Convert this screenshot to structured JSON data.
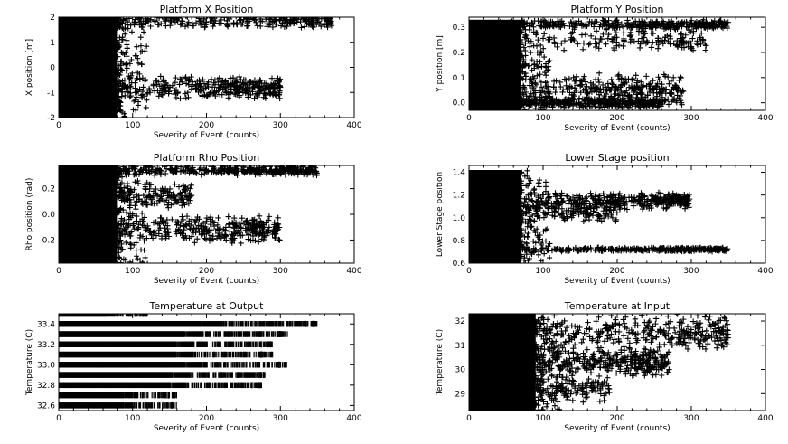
{
  "figure": {
    "background": "#ffffff",
    "ink_color": "#000000"
  },
  "chart_data": [
    {
      "type": "scatter",
      "title": "Platform X Position",
      "xlabel": "Severity of Event (counts)",
      "ylabel": "X position [m]",
      "xlim": [
        0,
        400
      ],
      "ylim": [
        -2.0,
        2.0
      ],
      "x_ticks": [
        0,
        100,
        200,
        300,
        400
      ],
      "y_ticks": [
        -2,
        -1,
        0,
        1,
        2
      ],
      "marker": "+",
      "grid": false,
      "legend": "none",
      "bands": [
        {
          "y_center": 1.9,
          "y_spread": 0.35,
          "x_max": 370,
          "density": "dense"
        },
        {
          "y_center": -0.8,
          "y_spread": 0.5,
          "x_max": 300,
          "density": "dense"
        },
        {
          "y_center": 0.0,
          "y_spread": 2.0,
          "x_max": 80,
          "density": "solid"
        }
      ]
    },
    {
      "type": "scatter",
      "title": "Platform Y Position",
      "xlabel": "Severity of Event (counts)",
      "ylabel": "Y position [m]",
      "xlim": [
        0,
        400
      ],
      "ylim": [
        -0.03,
        0.34
      ],
      "x_ticks": [
        0,
        100,
        200,
        300,
        400
      ],
      "y_ticks": [
        0.0,
        0.1,
        0.2,
        0.3
      ],
      "marker": "+",
      "grid": false,
      "legend": "none",
      "bands": [
        {
          "y_center": 0.31,
          "y_spread": 0.02,
          "x_max": 350,
          "density": "dense"
        },
        {
          "y_center": 0.25,
          "y_spread": 0.05,
          "x_max": 320,
          "density": "medium"
        },
        {
          "y_center": 0.05,
          "y_spread": 0.07,
          "x_max": 290,
          "density": "dense"
        },
        {
          "y_center": 0.0,
          "y_spread": 0.02,
          "x_max": 260,
          "density": "dense"
        },
        {
          "y_center": 0.15,
          "y_spread": 0.18,
          "x_max": 70,
          "density": "solid"
        }
      ]
    },
    {
      "type": "scatter",
      "title": "Platform Rho Position",
      "xlabel": "Severity of Event (counts)",
      "ylabel": "Rho position (rad)",
      "xlim": [
        0,
        400
      ],
      "ylim": [
        -0.38,
        0.38
      ],
      "x_ticks": [
        0,
        100,
        200,
        300,
        400
      ],
      "y_ticks": [
        -0.2,
        0.0,
        0.2
      ],
      "marker": "+",
      "grid": false,
      "legend": "none",
      "bands": [
        {
          "y_center": 0.34,
          "y_spread": 0.04,
          "x_max": 350,
          "density": "dense"
        },
        {
          "y_center": -0.12,
          "y_spread": 0.12,
          "x_max": 300,
          "density": "dense"
        },
        {
          "y_center": 0.15,
          "y_spread": 0.1,
          "x_max": 180,
          "density": "medium"
        },
        {
          "y_center": 0.0,
          "y_spread": 0.38,
          "x_max": 80,
          "density": "solid"
        }
      ]
    },
    {
      "type": "scatter",
      "title": "Lower Stage position",
      "xlabel": "Severity of Event (counts)",
      "ylabel": "Lower Stage position",
      "xlim": [
        0,
        400
      ],
      "ylim": [
        0.6,
        1.46
      ],
      "x_ticks": [
        0,
        100,
        200,
        300,
        400
      ],
      "y_ticks": [
        0.6,
        0.8,
        1.0,
        1.2,
        1.4
      ],
      "marker": "+",
      "grid": false,
      "legend": "none",
      "bands": [
        {
          "y_center": 0.72,
          "y_spread": 0.02,
          "x_max": 350,
          "density": "dense"
        },
        {
          "y_center": 1.15,
          "y_spread": 0.08,
          "x_max": 300,
          "density": "dense"
        },
        {
          "y_center": 1.05,
          "y_spread": 0.1,
          "x_max": 200,
          "density": "medium"
        },
        {
          "y_center": 1.0,
          "y_spread": 0.42,
          "x_max": 70,
          "density": "solid"
        }
      ]
    },
    {
      "type": "scatter",
      "title": "Temperature at Output",
      "xlabel": "Severity of Event (counts)",
      "ylabel": "Temperature (C)",
      "xlim": [
        0,
        400
      ],
      "ylim": [
        32.55,
        33.5
      ],
      "x_ticks": [
        0,
        100,
        200,
        300,
        400
      ],
      "y_ticks": [
        32.6,
        32.8,
        33.0,
        33.2,
        33.4
      ],
      "marker": "|",
      "grid": false,
      "legend": "none",
      "levels": [
        {
          "y": 32.6,
          "x_max": 160
        },
        {
          "y": 32.7,
          "x_max": 160
        },
        {
          "y": 32.8,
          "x_max": 275
        },
        {
          "y": 32.9,
          "x_max": 280
        },
        {
          "y": 33.0,
          "x_max": 310
        },
        {
          "y": 33.1,
          "x_max": 290
        },
        {
          "y": 33.2,
          "x_max": 290
        },
        {
          "y": 33.3,
          "x_max": 310
        },
        {
          "y": 33.4,
          "x_max": 350
        },
        {
          "y": 33.5,
          "x_max": 120
        }
      ]
    },
    {
      "type": "scatter",
      "title": "Temperature at Input",
      "xlabel": "Severity of Event (counts)",
      "ylabel": "Temperature (C)",
      "xlim": [
        0,
        400
      ],
      "ylim": [
        28.3,
        32.3
      ],
      "x_ticks": [
        0,
        100,
        200,
        300,
        400
      ],
      "y_ticks": [
        29,
        30,
        31,
        32
      ],
      "marker": "+",
      "grid": false,
      "legend": "none",
      "bands": [
        {
          "y_center": 31.5,
          "y_spread": 0.8,
          "x_max": 350,
          "density": "dense"
        },
        {
          "y_center": 30.3,
          "y_spread": 0.6,
          "x_max": 270,
          "density": "dense"
        },
        {
          "y_center": 29.2,
          "y_spread": 0.6,
          "x_max": 190,
          "density": "medium"
        },
        {
          "y_center": 30.3,
          "y_spread": 2.0,
          "x_max": 90,
          "density": "solid"
        }
      ]
    }
  ]
}
